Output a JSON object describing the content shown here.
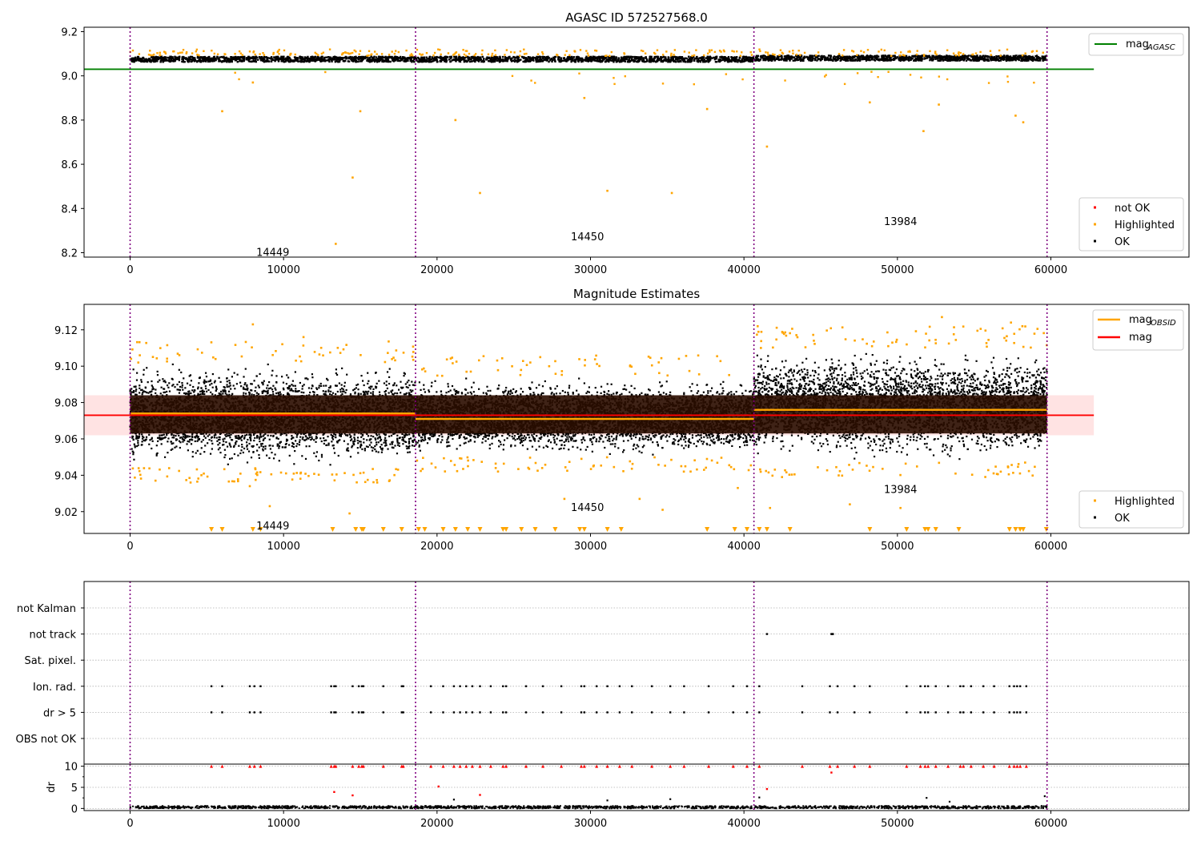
{
  "figure_title": "AGASC ID 572527568.0",
  "x_ticks": [
    0,
    10000,
    20000,
    30000,
    40000,
    50000,
    60000
  ],
  "obsid_boundaries": [
    0,
    18600,
    40650,
    59750
  ],
  "obsids": [
    {
      "label": "14449",
      "center": 9300
    },
    {
      "label": "14450",
      "center": 29800
    },
    {
      "label": "13984",
      "center": 50200
    }
  ],
  "colors": {
    "ok": "#000000",
    "highlighted": "#FFA500",
    "not_ok": "#FF0000",
    "mag_agasc": "#008000",
    "mag_obsid": "#FFA500",
    "mag": "#FF0000",
    "boundary": "#800080",
    "band": "#FFC0C0"
  },
  "chart_data": [
    {
      "type": "scatter",
      "title": "",
      "xlim": [
        -3000,
        69000
      ],
      "ylim": [
        8.18,
        9.22
      ],
      "yticks": [
        8.2,
        8.4,
        8.6,
        8.8,
        9.0,
        9.2
      ],
      "xticks": [
        0,
        10000,
        20000,
        30000,
        40000,
        50000,
        60000
      ],
      "grid": false,
      "legend_placement": [
        "top-right",
        "bottom-right"
      ],
      "lines": [
        {
          "name": "mag_AGASC",
          "y": 9.03,
          "x_range": [
            -3000,
            62800
          ]
        }
      ],
      "series": [
        {
          "name": "not OK",
          "points": []
        },
        {
          "name": "Highlighted",
          "points": [
            [
              6000,
              8.84
            ],
            [
              8000,
              8.97
            ],
            [
              13400,
              8.24
            ],
            [
              14500,
              8.54
            ],
            [
              15000,
              8.84
            ],
            [
              21200,
              8.8
            ],
            [
              22800,
              8.47
            ],
            [
              29600,
              8.9
            ],
            [
              31100,
              8.48
            ],
            [
              35300,
              8.47
            ],
            [
              37600,
              8.85
            ],
            [
              41500,
              8.68
            ],
            [
              48200,
              8.88
            ],
            [
              51700,
              8.75
            ],
            [
              52700,
              8.87
            ],
            [
              57700,
              8.82
            ],
            [
              58200,
              8.79
            ]
          ]
        },
        {
          "name": "OK",
          "mean": 9.075,
          "spread": 0.012
        }
      ],
      "obsid_labels_y": [
        8.2,
        8.27,
        8.34
      ]
    },
    {
      "type": "scatter",
      "title": "Magnitude Estimates",
      "xlim": [
        -3000,
        69000
      ],
      "ylim": [
        9.008,
        9.134
      ],
      "yticks": [
        9.02,
        9.04,
        9.06,
        9.08,
        9.1,
        9.12
      ],
      "xticks": [
        0,
        10000,
        20000,
        30000,
        40000,
        50000,
        60000
      ],
      "grid": false,
      "legend_placement": [
        "top-right",
        "bottom-right"
      ],
      "lines": [
        {
          "name": "mag_OBSID",
          "segments": [
            [
              0,
              18600,
              9.074
            ],
            [
              18600,
              40650,
              9.071
            ],
            [
              40650,
              59750,
              9.076
            ]
          ]
        },
        {
          "name": "mag",
          "y": 9.073,
          "band": [
            9.062,
            9.084
          ],
          "x_range": [
            -3000,
            62800
          ]
        }
      ],
      "series": [
        {
          "name": "Highlighted",
          "points": [
            [
              8000,
              9.123
            ],
            [
              11300,
              9.116
            ],
            [
              7800,
              9.034
            ],
            [
              9100,
              9.023
            ],
            [
              14300,
              9.019
            ],
            [
              16100,
              9.036
            ],
            [
              28300,
              9.027
            ],
            [
              33200,
              9.027
            ],
            [
              34700,
              9.021
            ],
            [
              37400,
              9.043
            ],
            [
              39600,
              9.033
            ],
            [
              41700,
              9.022
            ],
            [
              46900,
              9.024
            ],
            [
              50200,
              9.022
            ],
            [
              52900,
              9.127
            ],
            [
              57400,
              9.124
            ]
          ]
        },
        {
          "name": "OK",
          "ranges": [
            [
              0,
              18600,
              9.044,
              9.102
            ],
            [
              18600,
              40650,
              9.05,
              9.094
            ],
            [
              40650,
              59750,
              9.047,
              9.11
            ]
          ]
        }
      ],
      "clipped_markers_x": [
        5300,
        6000,
        8000,
        8500,
        13200,
        14700,
        15100,
        15200,
        16500,
        17700,
        18800,
        19200,
        20400,
        21200,
        22000,
        22800,
        24300,
        24500,
        25500,
        26400,
        27700,
        29300,
        29600,
        31100,
        32000,
        37600,
        39400,
        40200,
        41000,
        41500,
        43000,
        48200,
        50600,
        51800,
        52000,
        52500,
        54000,
        57300,
        57700,
        58000,
        58200,
        59700
      ],
      "obsid_labels_y": [
        9.012,
        9.022,
        9.032
      ]
    },
    {
      "type": "scatter",
      "title": "",
      "xlim": [
        -3000,
        69000
      ],
      "category_axis": [
        "not Kalman",
        "not track",
        "Sat. pixel.",
        "Ion. rad.",
        "dr > 5",
        "OBS not OK"
      ],
      "xticks": [
        0,
        10000,
        20000,
        30000,
        40000,
        50000,
        60000
      ],
      "grid": true,
      "flag_points": {
        "not track": [
          41500,
          45700,
          45750,
          45800
        ],
        "Ion. rad.": [
          5300,
          6000,
          7800,
          8100,
          8500,
          13100,
          13300,
          13400,
          14500,
          14900,
          15100,
          15200,
          16500,
          17700,
          17800,
          19600,
          20400,
          21100,
          21500,
          21900,
          22300,
          22800,
          23500,
          24300,
          24500,
          25800,
          26900,
          28100,
          29400,
          29600,
          30400,
          31100,
          31900,
          32700,
          34000,
          35200,
          36100,
          37700,
          39300,
          40200,
          41000,
          43800,
          45600,
          46100,
          47200,
          48200,
          50600,
          51500,
          51800,
          52000,
          52500,
          53300,
          54100,
          54300,
          54800,
          55600,
          56300,
          57300,
          57600,
          57800,
          58000,
          58400
        ],
        "dr > 5": [
          5300,
          6000,
          7800,
          8100,
          8500,
          13100,
          13300,
          13400,
          14500,
          14900,
          15100,
          15200,
          16500,
          17700,
          17800,
          19600,
          20400,
          21100,
          21500,
          21900,
          22300,
          22800,
          23500,
          24300,
          24500,
          25800,
          26900,
          28100,
          29400,
          29600,
          30400,
          31100,
          31900,
          32700,
          34000,
          35200,
          36100,
          37700,
          39300,
          40200,
          41000,
          43800,
          45600,
          46100,
          47200,
          48200,
          50600,
          51500,
          51800,
          52000,
          52500,
          53300,
          54100,
          54300,
          54800,
          55600,
          56300,
          57300,
          57600,
          57800,
          58000,
          58400
        ]
      }
    },
    {
      "type": "scatter",
      "title": "",
      "ylabel": "dr",
      "xlim": [
        -3000,
        69000
      ],
      "ylim": [
        -0.5,
        10.5
      ],
      "yticks": [
        0,
        5,
        10
      ],
      "xticks": [
        0,
        10000,
        20000,
        30000,
        40000,
        50000,
        60000
      ],
      "grid": true,
      "series": [
        {
          "name": "not OK",
          "points": [
            [
              13300,
              3.9
            ],
            [
              14500,
              3.1
            ],
            [
              20100,
              5.2
            ],
            [
              22800,
              3.2
            ],
            [
              41500,
              4.6
            ],
            [
              45700,
              8.5
            ]
          ]
        },
        {
          "name": "OK",
          "points": [
            [
              21100,
              2.1
            ],
            [
              31100,
              1.9
            ],
            [
              35200,
              2.2
            ],
            [
              41000,
              2.6
            ],
            [
              51900,
              2.5
            ],
            [
              53400,
              1.6
            ],
            [
              59600,
              2.9
            ]
          ]
        }
      ],
      "capped_at": 10
    }
  ],
  "legends": {
    "panel1_lines": [
      {
        "base": "mag",
        "sub": "AGASC",
        "color": "#008000"
      }
    ],
    "panel1_points": [
      {
        "label": "not OK",
        "color": "#FF0000"
      },
      {
        "label": "Highlighted",
        "color": "#FFA500"
      },
      {
        "label": "OK",
        "color": "#000000"
      }
    ],
    "panel2_lines": [
      {
        "base": "mag",
        "sub": "OBSID",
        "color": "#FFA500"
      },
      {
        "base": "mag",
        "sub": "",
        "color": "#FF0000"
      }
    ],
    "panel2_points": [
      {
        "label": "Highlighted",
        "color": "#FFA500"
      },
      {
        "label": "OK",
        "color": "#000000"
      }
    ]
  }
}
